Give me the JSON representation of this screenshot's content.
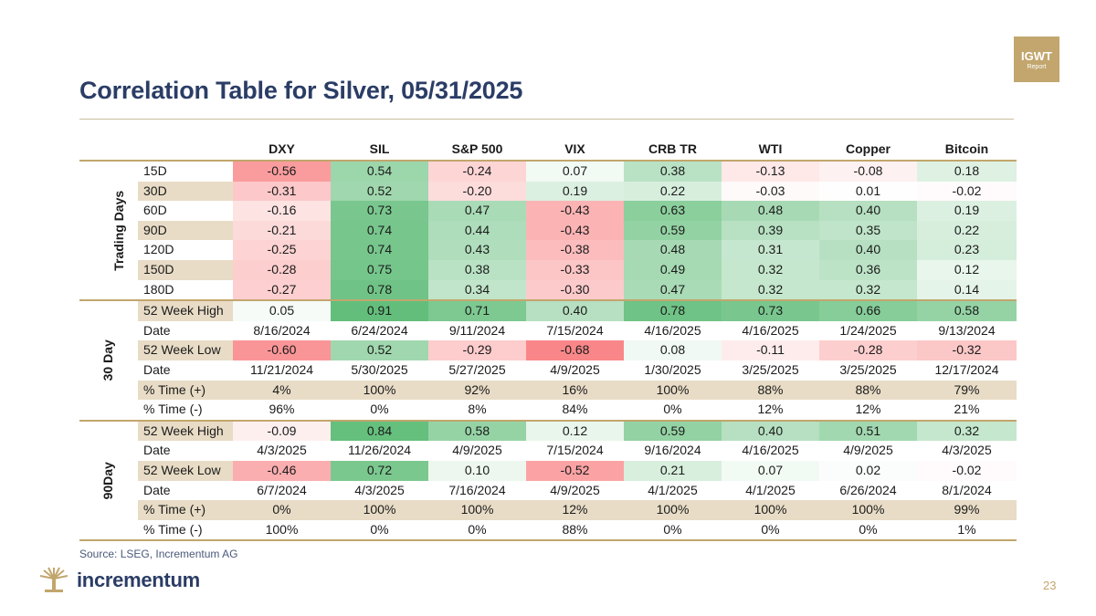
{
  "logo": {
    "line1": "IGWT",
    "line2": "Report"
  },
  "title": "Correlation Table for Silver, 05/31/2025",
  "columns": [
    "DXY",
    "SIL",
    "S&P 500",
    "VIX",
    "CRB TR",
    "WTI",
    "Copper",
    "Bitcoin"
  ],
  "colors": {
    "accent": "#c2a66d",
    "title": "#2b3d66",
    "tan": "#e8dcc6",
    "positive": "#63be7b",
    "negative": "#f8696b"
  },
  "groups": [
    {
      "label": "Trading Days",
      "rows": [
        {
          "label": "15D",
          "tan": false,
          "values": [
            "-0.56",
            "0.54",
            "-0.24",
            "0.07",
            "0.38",
            "-0.13",
            "-0.08",
            "0.18"
          ]
        },
        {
          "label": "30D",
          "tan": true,
          "values": [
            "-0.31",
            "0.52",
            "-0.20",
            "0.19",
            "0.22",
            "-0.03",
            "0.01",
            "-0.02"
          ]
        },
        {
          "label": "60D",
          "tan": false,
          "values": [
            "-0.16",
            "0.73",
            "0.47",
            "-0.43",
            "0.63",
            "0.48",
            "0.40",
            "0.19"
          ]
        },
        {
          "label": "90D",
          "tan": true,
          "values": [
            "-0.21",
            "0.74",
            "0.44",
            "-0.43",
            "0.59",
            "0.39",
            "0.35",
            "0.22"
          ]
        },
        {
          "label": "120D",
          "tan": false,
          "values": [
            "-0.25",
            "0.74",
            "0.43",
            "-0.38",
            "0.48",
            "0.31",
            "0.40",
            "0.23"
          ]
        },
        {
          "label": "150D",
          "tan": true,
          "values": [
            "-0.28",
            "0.75",
            "0.38",
            "-0.33",
            "0.49",
            "0.32",
            "0.36",
            "0.12"
          ]
        },
        {
          "label": "180D",
          "tan": false,
          "values": [
            "-0.27",
            "0.78",
            "0.34",
            "-0.30",
            "0.47",
            "0.32",
            "0.32",
            "0.14"
          ]
        }
      ]
    },
    {
      "label": "30 Day",
      "rows": [
        {
          "label": "52 Week High",
          "tan": true,
          "values": [
            "0.05",
            "0.91",
            "0.71",
            "0.40",
            "0.78",
            "0.73",
            "0.66",
            "0.58"
          ]
        },
        {
          "label": "Date",
          "tan": false,
          "values": [
            "8/16/2024",
            "6/24/2024",
            "9/11/2024",
            "7/15/2024",
            "4/16/2025",
            "4/16/2025",
            "1/24/2025",
            "9/13/2024"
          ]
        },
        {
          "label": "52 Week Low",
          "tan": true,
          "values": [
            "-0.60",
            "0.52",
            "-0.29",
            "-0.68",
            "0.08",
            "-0.11",
            "-0.28",
            "-0.32"
          ]
        },
        {
          "label": "Date",
          "tan": false,
          "values": [
            "11/21/2024",
            "5/30/2025",
            "5/27/2025",
            "4/9/2025",
            "1/30/2025",
            "3/25/2025",
            "3/25/2025",
            "12/17/2024"
          ]
        },
        {
          "label": "% Time (+)",
          "tan": true,
          "tanRow": true,
          "values": [
            "4%",
            "100%",
            "92%",
            "16%",
            "100%",
            "88%",
            "88%",
            "79%"
          ]
        },
        {
          "label": "% Time (-)",
          "tan": false,
          "values": [
            "96%",
            "0%",
            "8%",
            "84%",
            "0%",
            "12%",
            "12%",
            "21%"
          ]
        }
      ]
    },
    {
      "label": "90Day",
      "rows": [
        {
          "label": "52 Week High",
          "tan": true,
          "values": [
            "-0.09",
            "0.84",
            "0.58",
            "0.12",
            "0.59",
            "0.40",
            "0.51",
            "0.32"
          ]
        },
        {
          "label": "Date",
          "tan": false,
          "values": [
            "4/3/2025",
            "11/26/2024",
            "4/9/2025",
            "7/15/2024",
            "9/16/2024",
            "4/16/2025",
            "4/9/2025",
            "4/3/2025"
          ]
        },
        {
          "label": "52 Week Low",
          "tan": true,
          "values": [
            "-0.46",
            "0.72",
            "0.10",
            "-0.52",
            "0.21",
            "0.07",
            "0.02",
            "-0.02"
          ]
        },
        {
          "label": "Date",
          "tan": false,
          "values": [
            "6/7/2024",
            "4/3/2025",
            "7/16/2024",
            "4/9/2025",
            "4/1/2025",
            "4/1/2025",
            "6/26/2024",
            "8/1/2024"
          ]
        },
        {
          "label": "% Time (+)",
          "tan": true,
          "tanRow": true,
          "values": [
            "0%",
            "100%",
            "100%",
            "12%",
            "100%",
            "100%",
            "100%",
            "99%"
          ]
        },
        {
          "label": "% Time (-)",
          "tan": false,
          "values": [
            "100%",
            "0%",
            "0%",
            "88%",
            "0%",
            "0%",
            "0%",
            "1%"
          ]
        }
      ]
    }
  ],
  "source": "Source: LSEG, Incrementum AG",
  "brand": "incrementum",
  "page_number": "23"
}
